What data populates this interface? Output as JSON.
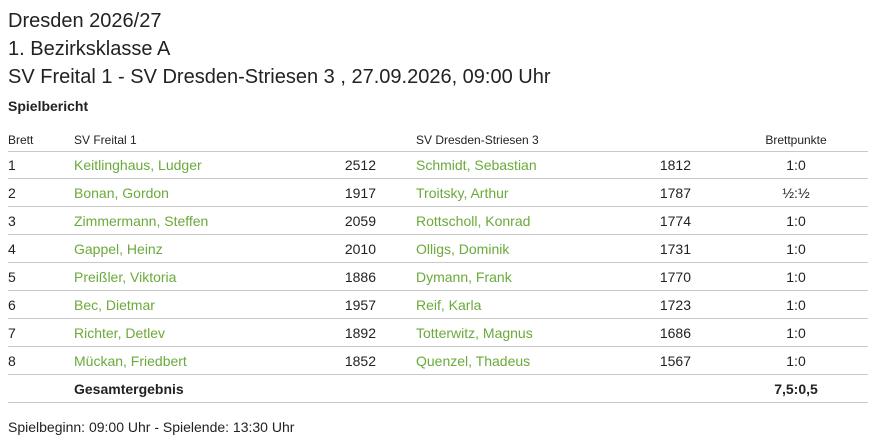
{
  "header": {
    "season": "Dresden 2026/27",
    "league": "1. Bezirksklasse A",
    "match": "SV Freital 1 - SV Dresden-Striesen 3 , 27.09.2026, 09:00 Uhr",
    "section": "Spielbericht"
  },
  "table": {
    "columns": [
      "Brett",
      "SV Freital 1",
      "SV Dresden-Striesen 3",
      "Brettpunkte"
    ],
    "rows": [
      [
        1,
        "Keitlinghaus, Ludger",
        2512,
        "Schmidt, Sebastian",
        1812,
        "1:0"
      ],
      [
        2,
        "Bonan, Gordon",
        1917,
        "Troitsky, Arthur",
        1787,
        "½:½"
      ],
      [
        3,
        "Zimmermann, Steffen",
        2059,
        "Rottscholl, Konrad",
        1774,
        "1:0"
      ],
      [
        4,
        "Gappel, Heinz",
        2010,
        "Olligs, Dominik",
        1731,
        "1:0"
      ],
      [
        5,
        "Preißler, Viktoria",
        1886,
        "Dymann, Frank",
        1770,
        "1:0"
      ],
      [
        6,
        "Bec, Dietmar",
        1957,
        "Reif, Karla",
        1723,
        "1:0"
      ],
      [
        7,
        "Richter, Detlev",
        1892,
        "Totterwitz, Magnus",
        1686,
        "1:0"
      ],
      [
        8,
        "Mückan, Friedbert",
        1852,
        "Quenzel, Thadeus",
        1567,
        "1:0"
      ]
    ],
    "total": {
      "label": "Gesamtergebnis",
      "result": "7,5:0,5"
    }
  },
  "footer": "Spielbeginn: 09:00 Uhr - Spielende: 13:30 Uhr"
}
